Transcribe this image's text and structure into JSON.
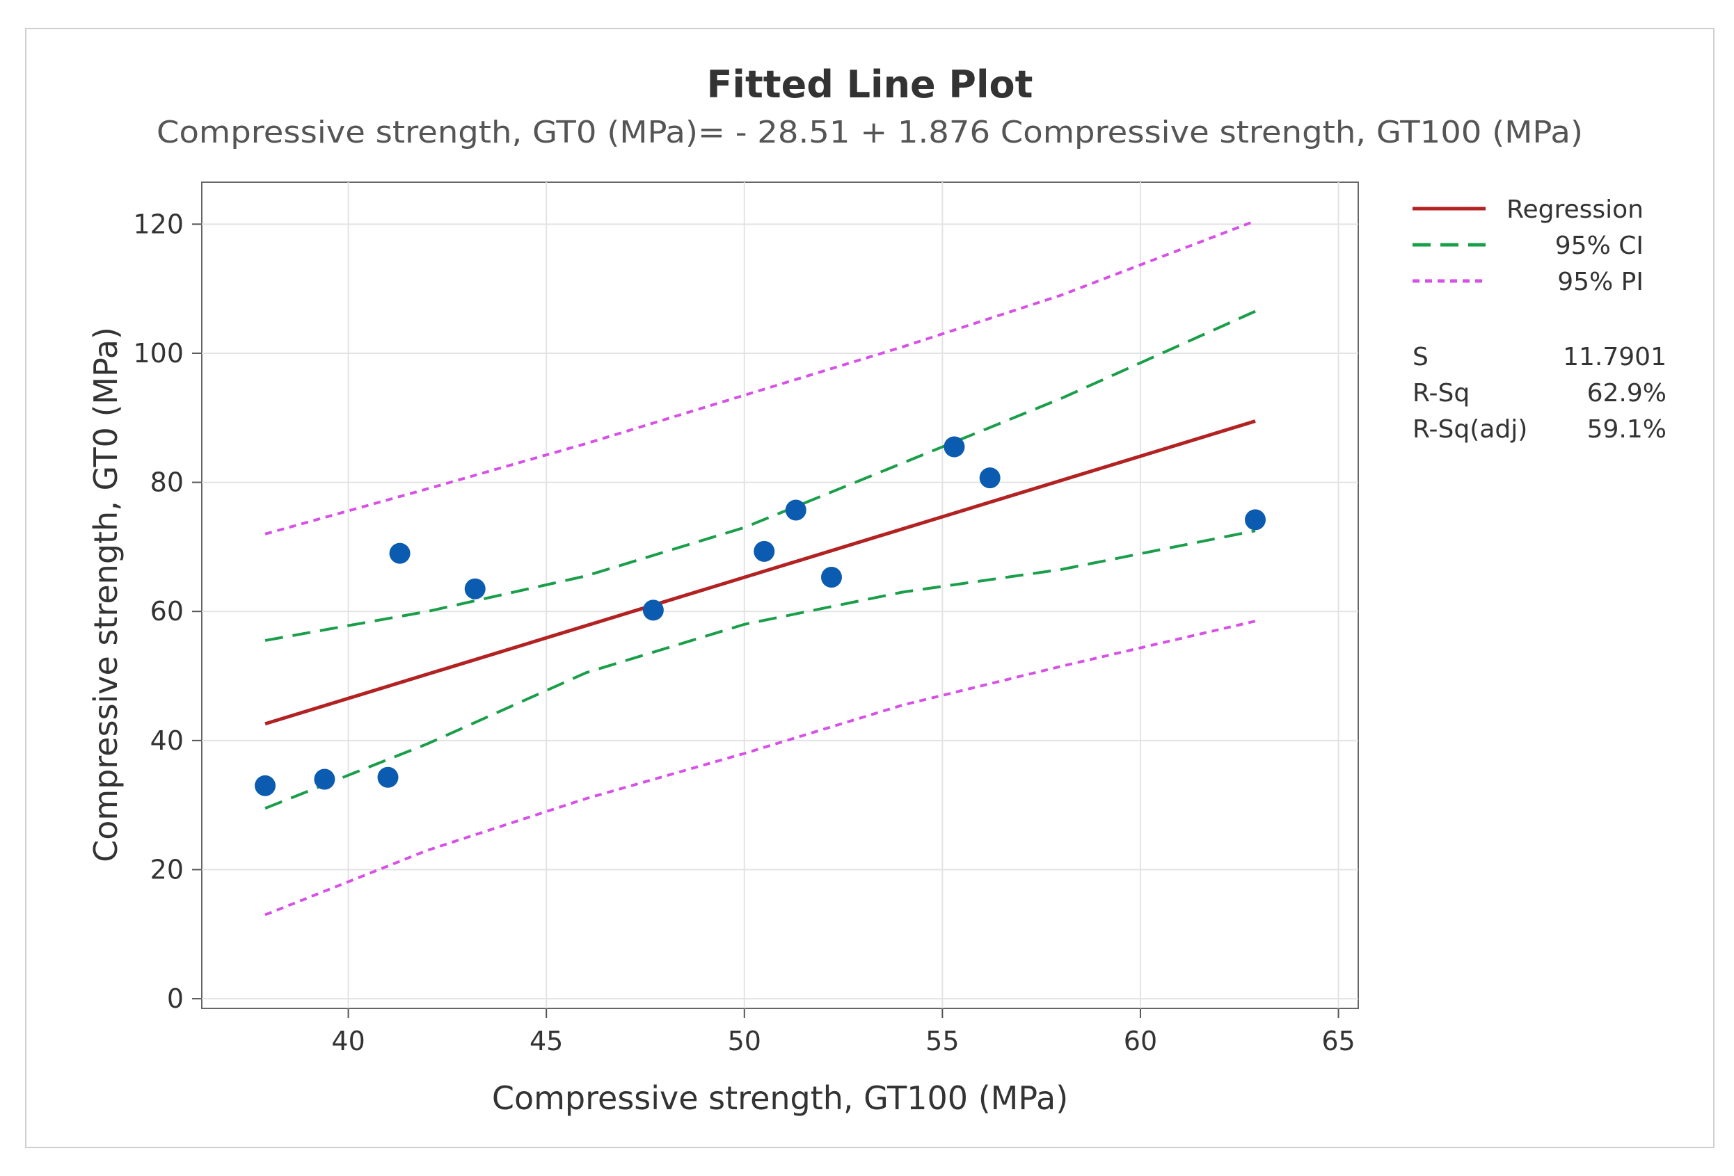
{
  "chart_data": {
    "type": "scatter",
    "title": "Fitted Line Plot",
    "subtitle": "Compressive strength, GT0 (MPa)= - 28.51 + 1.876 Compressive strength, GT100 (MPa)",
    "xlabel": "Compressive strength, GT100 (MPa)",
    "ylabel": "Compressive strength, GT0 (MPa)",
    "xlim": [
      36.3,
      65.5
    ],
    "ylim": [
      -1.5,
      126.5
    ],
    "xticks": [
      40,
      45,
      50,
      55,
      60,
      65
    ],
    "yticks": [
      0,
      20,
      40,
      60,
      80,
      100,
      120
    ],
    "grid": true,
    "legend_position": "right",
    "points": {
      "x": [
        37.9,
        39.4,
        41.0,
        41.3,
        43.2,
        47.7,
        50.5,
        51.3,
        52.2,
        55.3,
        56.2,
        62.9
      ],
      "y": [
        33,
        34,
        34.3,
        69,
        63.5,
        60.2,
        69.3,
        75.7,
        65.3,
        85.5,
        80.7,
        74.2
      ]
    },
    "regression": {
      "intercept": -28.51,
      "slope": 1.876,
      "x_range": [
        37.9,
        62.9
      ]
    },
    "ci_upper": {
      "x": [
        37.9,
        42,
        46,
        50,
        54,
        58,
        62.9
      ],
      "y": [
        55.5,
        60,
        65.5,
        73,
        83,
        93,
        106.5
      ]
    },
    "ci_lower": {
      "x": [
        37.9,
        42,
        46,
        50,
        54,
        58,
        62.9
      ],
      "y": [
        29.5,
        39.5,
        50.5,
        58,
        63,
        66.5,
        72.5
      ]
    },
    "pi_upper": {
      "x": [
        37.9,
        42,
        46,
        50,
        54,
        58,
        62.9
      ],
      "y": [
        72,
        79,
        86,
        93.5,
        101,
        109,
        120.5
      ]
    },
    "pi_lower": {
      "x": [
        37.9,
        42,
        46,
        50,
        54,
        58,
        62.9
      ],
      "y": [
        13,
        23,
        31,
        38,
        45.5,
        51.5,
        58.5
      ]
    },
    "legend": [
      {
        "label": "Regression",
        "color": "#b22222",
        "style": "solid"
      },
      {
        "label": "95% CI",
        "color": "#1a9e4a",
        "style": "dashed"
      },
      {
        "label": "95% PI",
        "color": "#d651e6",
        "style": "dotted"
      }
    ],
    "stats": [
      {
        "label": "S",
        "value": "11.7901"
      },
      {
        "label": "R-Sq",
        "value": "62.9%"
      },
      {
        "label": "R-Sq(adj)",
        "value": "59.1%"
      }
    ],
    "colors": {
      "points": "#0b5bb0",
      "regression": "#b22222",
      "ci": "#1a9e4a",
      "pi": "#d651e6",
      "grid": "#e3e3e3",
      "axis": "#555555"
    }
  }
}
